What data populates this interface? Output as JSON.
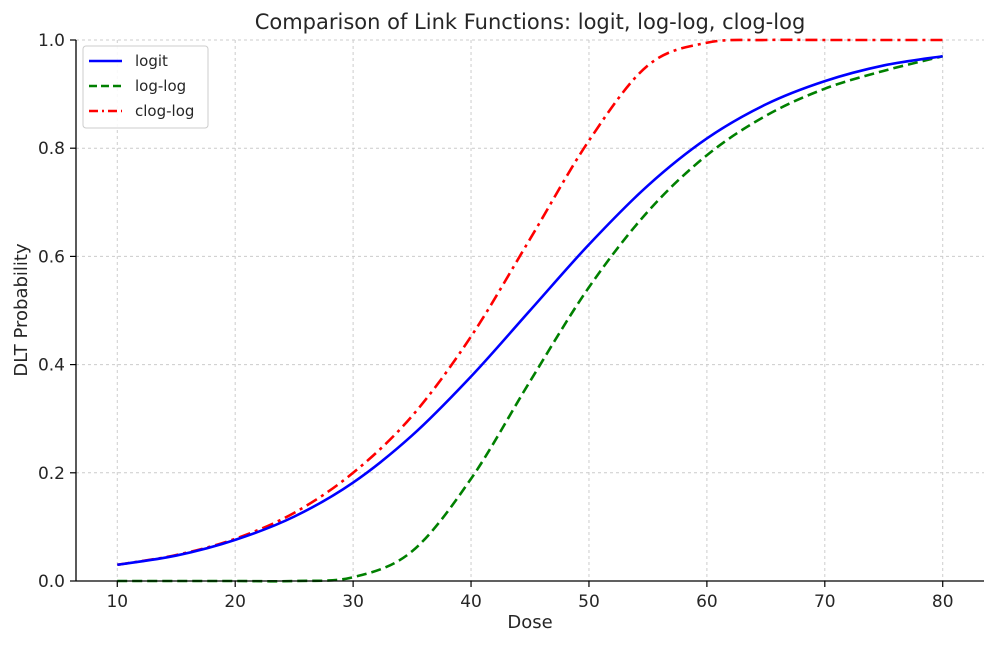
{
  "chart_data": {
    "type": "line",
    "title": "Comparison of Link Functions: logit, log-log, clog-log",
    "xlabel": "Dose",
    "ylabel": "DLT Probability",
    "xlim": [
      6.5,
      83.5
    ],
    "ylim": [
      0,
      1
    ],
    "xticks": [
      10,
      20,
      30,
      40,
      50,
      60,
      70,
      80
    ],
    "yticks": [
      0.0,
      0.2,
      0.4,
      0.6,
      0.8,
      1.0
    ],
    "xtick_labels": [
      "10",
      "20",
      "30",
      "40",
      "50",
      "60",
      "70",
      "80"
    ],
    "ytick_labels": [
      "0.0",
      "0.2",
      "0.4",
      "0.6",
      "0.8",
      "1.0"
    ],
    "grid": true,
    "legend_position": "top-left",
    "x": [
      10,
      15,
      20,
      25,
      30,
      35,
      40,
      45,
      50,
      55,
      60,
      65,
      70,
      75,
      80
    ],
    "series": [
      {
        "name": "logit",
        "color": "#0000ff",
        "dash": "solid",
        "values": [
          0.03,
          0.047,
          0.076,
          0.119,
          0.182,
          0.269,
          0.378,
          0.5,
          0.622,
          0.731,
          0.818,
          0.881,
          0.924,
          0.953,
          0.97
        ]
      },
      {
        "name": "log-log",
        "color": "#008000",
        "dash": "dashed",
        "values": [
          0.0,
          0.0,
          0.0,
          0.0,
          0.007,
          0.055,
          0.189,
          0.369,
          0.543,
          0.683,
          0.787,
          0.86,
          0.91,
          0.943,
          0.97
        ]
      },
      {
        "name": "clog-log",
        "color": "#ff0000",
        "dash": "dashdot",
        "values": [
          0.03,
          0.048,
          0.078,
          0.126,
          0.2,
          0.305,
          0.452,
          0.632,
          0.814,
          0.953,
          0.995,
          1.0,
          1.0,
          1.0,
          1.0
        ]
      }
    ]
  }
}
